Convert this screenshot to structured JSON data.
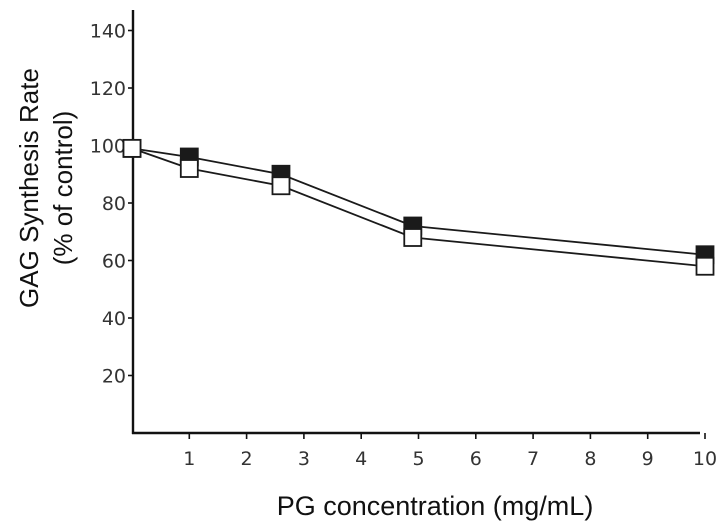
{
  "chart_data": {
    "type": "line",
    "title": "",
    "ylabel_lines": [
      "GAG Synthesis Rate",
      "(% of control)"
    ],
    "xlabel": "PG concentration (mg/mL)",
    "xlim": [
      0,
      10
    ],
    "ylim": [
      0,
      140
    ],
    "x_ticks": [
      1,
      2,
      3,
      4,
      5,
      6,
      7,
      8,
      9,
      10
    ],
    "y_ticks": [
      20,
      40,
      60,
      80,
      100,
      120,
      140
    ],
    "grid": false,
    "legend": false,
    "series": [
      {
        "marker": "filled-square",
        "color": "#1a1a1a",
        "x": [
          0,
          1,
          2.6,
          4.9,
          10
        ],
        "y": [
          99,
          96,
          90,
          72,
          62
        ]
      },
      {
        "marker": "open-square",
        "color": "#1a1a1a",
        "x": [
          0,
          1,
          2.6,
          4.9,
          10
        ],
        "y": [
          99,
          92,
          86,
          68,
          58
        ]
      }
    ]
  }
}
